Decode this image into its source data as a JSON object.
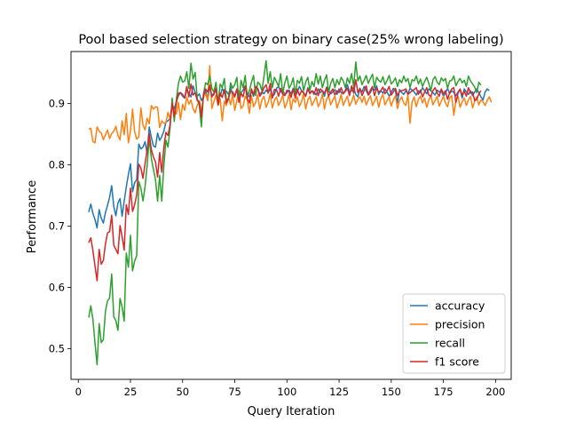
{
  "chart_data": {
    "type": "line",
    "title": "Pool based selection strategy on binary case(25% wrong labeling)",
    "xlabel": "Query Iteration",
    "ylabel": "Performance",
    "xlim": [
      -3.5,
      207.5
    ],
    "ylim": [
      0.45,
      0.985
    ],
    "grid": false,
    "legend_position": "lower-right",
    "x_ticks": [
      0,
      25,
      50,
      75,
      100,
      125,
      150,
      175,
      200
    ],
    "y_ticks": [
      0.5,
      0.6,
      0.7,
      0.8,
      0.9
    ],
    "y_tick_labels": [
      "0.5",
      "0.6",
      "0.7",
      "0.8",
      "0.9"
    ],
    "x_start": 5,
    "x_step": 1,
    "series": [
      {
        "name": "accuracy",
        "color": "#1f77b4",
        "values": [
          0.723,
          0.736,
          0.721,
          0.711,
          0.697,
          0.727,
          0.713,
          0.705,
          0.722,
          0.734,
          0.747,
          0.766,
          0.732,
          0.717,
          0.738,
          0.745,
          0.716,
          0.741,
          0.764,
          0.784,
          0.802,
          0.756,
          0.771,
          0.776,
          0.834,
          0.826,
          0.829,
          0.838,
          0.818,
          0.862,
          0.845,
          0.831,
          0.829,
          0.852,
          0.84,
          0.846,
          0.855,
          0.87,
          0.872,
          0.876,
          0.899,
          0.891,
          0.904,
          0.913,
          0.918,
          0.912,
          0.909,
          0.922,
          0.917,
          0.911,
          0.929,
          0.918,
          0.912,
          0.916,
          0.905,
          0.911,
          0.922,
          0.905,
          0.928,
          0.913,
          0.917,
          0.921,
          0.908,
          0.912,
          0.925,
          0.917,
          0.92,
          0.915,
          0.928,
          0.912,
          0.914,
          0.923,
          0.905,
          0.918,
          0.922,
          0.929,
          0.917,
          0.911,
          0.921,
          0.912,
          0.928,
          0.925,
          0.915,
          0.919,
          0.916,
          0.922,
          0.918,
          0.924,
          0.911,
          0.915,
          0.925,
          0.928,
          0.919,
          0.922,
          0.914,
          0.918,
          0.922,
          0.916,
          0.925,
          0.912,
          0.919,
          0.928,
          0.921,
          0.917,
          0.913,
          0.926,
          0.918,
          0.921,
          0.919,
          0.914,
          0.924,
          0.918,
          0.921,
          0.912,
          0.927,
          0.921,
          0.916,
          0.919,
          0.923,
          0.915,
          0.924,
          0.918,
          0.916,
          0.922,
          0.931,
          0.918,
          0.921,
          0.926,
          0.915,
          0.911,
          0.924,
          0.919,
          0.928,
          0.921,
          0.914,
          0.918,
          0.925,
          0.922,
          0.929,
          0.915,
          0.921,
          0.917,
          0.924,
          0.919,
          0.912,
          0.918,
          0.925,
          0.921,
          0.901,
          0.923,
          0.918,
          0.915,
          0.921,
          0.916,
          0.925,
          0.922,
          0.919,
          0.914,
          0.921,
          0.918,
          0.926,
          0.921,
          0.916,
          0.924,
          0.921,
          0.918,
          0.914,
          0.922,
          0.919,
          0.921,
          0.912,
          0.917,
          0.925,
          0.916,
          0.921,
          0.918,
          0.913,
          0.919,
          0.923,
          0.909,
          0.924,
          0.919,
          0.915,
          0.921,
          0.913,
          0.919,
          0.924,
          0.918,
          0.911,
          0.906,
          0.919,
          0.924,
          0.921
        ]
      },
      {
        "name": "precision",
        "color": "#ff7f0e",
        "values": [
          0.858,
          0.86,
          0.838,
          0.836,
          0.862,
          0.855,
          0.852,
          0.841,
          0.849,
          0.857,
          0.843,
          0.851,
          0.855,
          0.863,
          0.848,
          0.841,
          0.872,
          0.849,
          0.884,
          0.836,
          0.855,
          0.891,
          0.854,
          0.842,
          0.846,
          0.893,
          0.865,
          0.857,
          0.876,
          0.867,
          0.897,
          0.891,
          0.895,
          0.894,
          0.861,
          0.872,
          0.868,
          0.869,
          0.886,
          0.874,
          0.895,
          0.89,
          0.883,
          0.902,
          0.874,
          0.899,
          0.889,
          0.911,
          0.899,
          0.906,
          0.892,
          0.885,
          0.897,
          0.905,
          0.886,
          0.91,
          0.916,
          0.905,
          0.962,
          0.892,
          0.903,
          0.914,
          0.897,
          0.908,
          0.872,
          0.904,
          0.897,
          0.911,
          0.898,
          0.915,
          0.889,
          0.905,
          0.921,
          0.892,
          0.896,
          0.912,
          0.906,
          0.884,
          0.913,
          0.895,
          0.902,
          0.915,
          0.891,
          0.906,
          0.912,
          0.894,
          0.902,
          0.916,
          0.893,
          0.905,
          0.911,
          0.897,
          0.904,
          0.914,
          0.893,
          0.901,
          0.915,
          0.89,
          0.908,
          0.902,
          0.911,
          0.895,
          0.903,
          0.916,
          0.891,
          0.906,
          0.912,
          0.897,
          0.904,
          0.911,
          0.895,
          0.902,
          0.916,
          0.891,
          0.907,
          0.913,
          0.898,
          0.906,
          0.912,
          0.893,
          0.903,
          0.915,
          0.897,
          0.905,
          0.912,
          0.896,
          0.903,
          0.914,
          0.899,
          0.907,
          0.911,
          0.902,
          0.912,
          0.898,
          0.906,
          0.913,
          0.897,
          0.904,
          0.912,
          0.894,
          0.908,
          0.915,
          0.898,
          0.905,
          0.911,
          0.896,
          0.906,
          0.913,
          0.892,
          0.905,
          0.911,
          0.901,
          0.897,
          0.914,
          0.868,
          0.903,
          0.911,
          0.895,
          0.907,
          0.912,
          0.901,
          0.909,
          0.894,
          0.906,
          0.913,
          0.898,
          0.905,
          0.912,
          0.896,
          0.904,
          0.912,
          0.901,
          0.895,
          0.909,
          0.913,
          0.881,
          0.905,
          0.912,
          0.894,
          0.903,
          0.909,
          0.897,
          0.906,
          0.912,
          0.893,
          0.904,
          0.911,
          0.898,
          0.906,
          0.903,
          0.897,
          0.905,
          0.911,
          0.902
        ]
      },
      {
        "name": "recall",
        "color": "#2ca02c",
        "values": [
          0.551,
          0.57,
          0.548,
          0.509,
          0.474,
          0.541,
          0.51,
          0.515,
          0.561,
          0.578,
          0.583,
          0.622,
          0.552,
          0.546,
          0.53,
          0.582,
          0.568,
          0.545,
          0.656,
          0.633,
          0.685,
          0.627,
          0.643,
          0.652,
          0.773,
          0.762,
          0.741,
          0.765,
          0.799,
          0.844,
          0.811,
          0.793,
          0.776,
          0.741,
          0.783,
          0.741,
          0.798,
          0.84,
          0.829,
          0.861,
          0.909,
          0.871,
          0.907,
          0.933,
          0.945,
          0.935,
          0.937,
          0.952,
          0.925,
          0.966,
          0.94,
          0.951,
          0.909,
          0.897,
          0.862,
          0.915,
          0.934,
          0.931,
          0.945,
          0.925,
          0.919,
          0.935,
          0.899,
          0.932,
          0.926,
          0.941,
          0.904,
          0.909,
          0.934,
          0.925,
          0.931,
          0.943,
          0.903,
          0.938,
          0.926,
          0.946,
          0.909,
          0.921,
          0.935,
          0.946,
          0.913,
          0.935,
          0.932,
          0.921,
          0.944,
          0.97,
          0.933,
          0.952,
          0.926,
          0.943,
          0.936,
          0.928,
          0.949,
          0.917,
          0.934,
          0.945,
          0.925,
          0.931,
          0.942,
          0.916,
          0.938,
          0.933,
          0.944,
          0.921,
          0.935,
          0.943,
          0.922,
          0.936,
          0.928,
          0.949,
          0.932,
          0.945,
          0.926,
          0.938,
          0.947,
          0.919,
          0.933,
          0.941,
          0.926,
          0.939,
          0.931,
          0.943,
          0.937,
          0.926,
          0.942,
          0.933,
          0.949,
          0.928,
          0.968,
          0.937,
          0.945,
          0.931,
          0.938,
          0.946,
          0.933,
          0.941,
          0.948,
          0.926,
          0.943,
          0.938,
          0.935,
          0.944,
          0.931,
          0.938,
          0.946,
          0.932,
          0.936,
          0.942,
          0.928,
          0.939,
          0.934,
          0.945,
          0.936,
          0.941,
          0.926,
          0.939,
          0.937,
          0.945,
          0.932,
          0.94,
          0.928,
          0.936,
          0.943,
          0.933,
          0.921,
          0.939,
          0.944,
          0.935,
          0.931,
          0.942,
          0.937,
          0.941,
          0.925,
          0.937,
          0.938,
          0.945,
          0.929,
          0.936,
          0.941,
          0.934,
          0.938,
          0.928,
          0.945,
          0.937,
          0.932,
          0.927,
          0.918,
          0.935,
          0.93
        ]
      },
      {
        "name": "f1 score",
        "color": "#d62728",
        "values": [
          0.673,
          0.681,
          0.66,
          0.635,
          0.611,
          0.662,
          0.638,
          0.644,
          0.671,
          0.689,
          0.691,
          0.718,
          0.669,
          0.662,
          0.655,
          0.701,
          0.683,
          0.661,
          0.735,
          0.719,
          0.762,
          0.724,
          0.735,
          0.751,
          0.801,
          0.795,
          0.778,
          0.802,
          0.825,
          0.851,
          0.825,
          0.813,
          0.805,
          0.78,
          0.82,
          0.788,
          0.829,
          0.853,
          0.848,
          0.866,
          0.901,
          0.879,
          0.901,
          0.917,
          0.918,
          0.915,
          0.909,
          0.928,
          0.911,
          0.932,
          0.914,
          0.918,
          0.905,
          0.902,
          0.878,
          0.915,
          0.924,
          0.919,
          0.93,
          0.911,
          0.915,
          0.925,
          0.898,
          0.917,
          0.91,
          0.923,
          0.901,
          0.908,
          0.921,
          0.919,
          0.911,
          0.924,
          0.902,
          0.917,
          0.911,
          0.929,
          0.908,
          0.901,
          0.924,
          0.915,
          0.928,
          0.924,
          0.912,
          0.917,
          0.926,
          0.931,
          0.917,
          0.933,
          0.909,
          0.923,
          0.923,
          0.912,
          0.925,
          0.915,
          0.913,
          0.922,
          0.92,
          0.91,
          0.924,
          0.909,
          0.924,
          0.913,
          0.921,
          0.918,
          0.912,
          0.924,
          0.916,
          0.921,
          0.915,
          0.926,
          0.913,
          0.924,
          0.921,
          0.917,
          0.926,
          0.912,
          0.919,
          0.924,
          0.914,
          0.921,
          0.918,
          0.926,
          0.916,
          0.92,
          0.925,
          0.913,
          0.929,
          0.917,
          0.939,
          0.918,
          0.925,
          0.913,
          0.921,
          0.929,
          0.914,
          0.922,
          0.928,
          0.913,
          0.925,
          0.919,
          0.921,
          0.927,
          0.916,
          0.921,
          0.928,
          0.914,
          0.919,
          0.925,
          0.913,
          0.92,
          0.921,
          0.922,
          0.924,
          0.915,
          0.918,
          0.921,
          0.923,
          0.926,
          0.915,
          0.922,
          0.911,
          0.919,
          0.926,
          0.914,
          0.912,
          0.921,
          0.926,
          0.918,
          0.912,
          0.924,
          0.916,
          0.921,
          0.907,
          0.918,
          0.924,
          0.926,
          0.902,
          0.917,
          0.924,
          0.914,
          0.92,
          0.912,
          0.926,
          0.917,
          0.919,
          0.905,
          0.907,
          0.916,
          0.921
        ]
      }
    ]
  }
}
